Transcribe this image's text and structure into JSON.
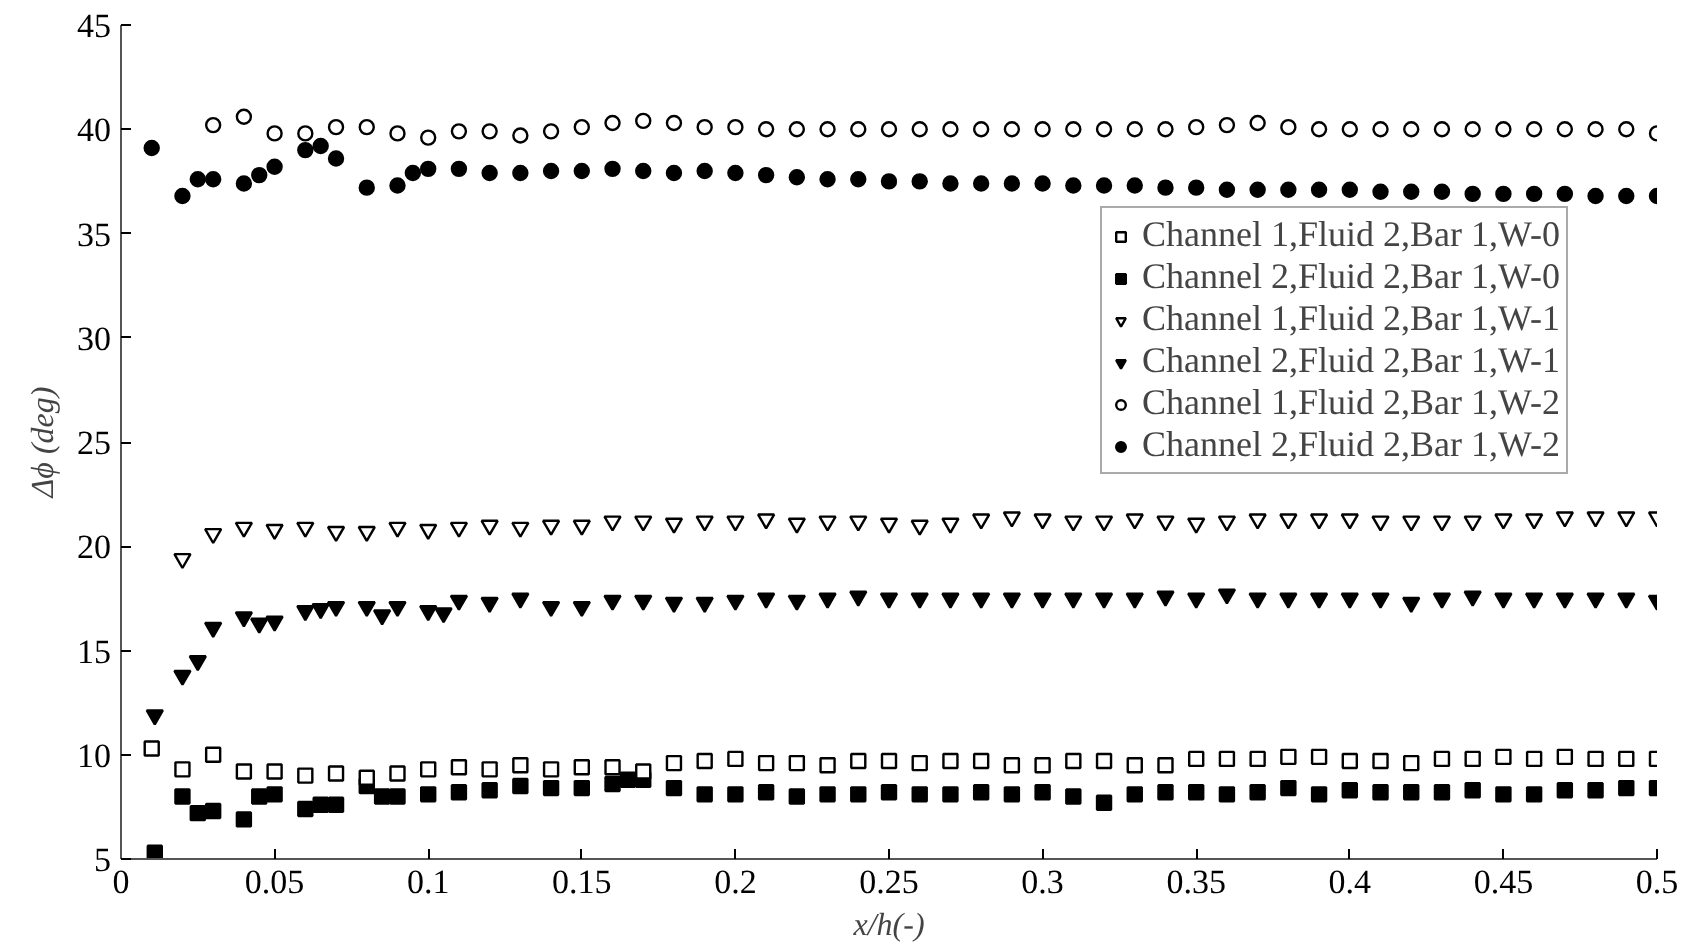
{
  "chart_data": {
    "type": "scatter",
    "xlabel": "x/h(-)",
    "ylabel": "Δϕ (deg)",
    "xlim": [
      0,
      0.5
    ],
    "ylim": [
      5,
      45
    ],
    "xticks": [
      0,
      0.05,
      0.1,
      0.15,
      0.2,
      0.25,
      0.3,
      0.35,
      0.4,
      0.45,
      0.5
    ],
    "yticks": [
      5,
      10,
      15,
      20,
      25,
      30,
      35,
      40,
      45
    ],
    "grid": false,
    "legend": "right",
    "series": [
      {
        "name": "Channel 1,Fluid 2,Bar 1,W-0",
        "color": "#000000",
        "marker": "square",
        "x": [
          0.01,
          0.02,
          0.03,
          0.04,
          0.05,
          0.06,
          0.07,
          0.08,
          0.09,
          0.1,
          0.11,
          0.12,
          0.13,
          0.14,
          0.15,
          0.16,
          0.17,
          0.18,
          0.19,
          0.2,
          0.21,
          0.22,
          0.23,
          0.24,
          0.25,
          0.26,
          0.27,
          0.28,
          0.29,
          0.3,
          0.31,
          0.32,
          0.33,
          0.34,
          0.35,
          0.36,
          0.37,
          0.38,
          0.39,
          0.4,
          0.41,
          0.42,
          0.43,
          0.44,
          0.45,
          0.46,
          0.47,
          0.48,
          0.49,
          0.5
        ],
        "values": [
          10.3,
          9.3,
          10.0,
          9.2,
          9.2,
          9.0,
          9.1,
          8.9,
          9.1,
          9.3,
          9.4,
          9.3,
          9.5,
          9.3,
          9.4,
          9.4,
          9.2,
          9.6,
          9.7,
          9.8,
          9.6,
          9.6,
          9.5,
          9.7,
          9.7,
          9.6,
          9.7,
          9.7,
          9.5,
          9.5,
          9.7,
          9.7,
          9.5,
          9.5,
          9.8,
          9.8,
          9.8,
          9.9,
          9.9,
          9.7,
          9.7,
          9.6,
          9.8,
          9.8,
          9.9,
          9.8,
          9.9,
          9.8,
          9.8,
          9.8
        ]
      },
      {
        "name": "Channel 2,Fluid 2,Bar 1,W-0",
        "color": "#000000",
        "marker": "square",
        "x": [
          0.011,
          0.02,
          0.025,
          0.03,
          0.04,
          0.045,
          0.05,
          0.06,
          0.065,
          0.07,
          0.08,
          0.085,
          0.09,
          0.1,
          0.11,
          0.12,
          0.13,
          0.14,
          0.15,
          0.16,
          0.165,
          0.17,
          0.18,
          0.19,
          0.2,
          0.21,
          0.22,
          0.23,
          0.24,
          0.25,
          0.26,
          0.27,
          0.28,
          0.29,
          0.3,
          0.31,
          0.32,
          0.33,
          0.34,
          0.35,
          0.36,
          0.37,
          0.38,
          0.39,
          0.4,
          0.41,
          0.42,
          0.43,
          0.44,
          0.45,
          0.46,
          0.47,
          0.48,
          0.49,
          0.5
        ],
        "values": [
          5.3,
          8.0,
          7.2,
          7.3,
          6.9,
          8.0,
          8.1,
          7.4,
          7.6,
          7.6,
          8.5,
          8.0,
          8.0,
          8.1,
          8.2,
          8.3,
          8.5,
          8.4,
          8.4,
          8.6,
          8.8,
          8.8,
          8.4,
          8.1,
          8.1,
          8.2,
          8.0,
          8.1,
          8.1,
          8.2,
          8.1,
          8.1,
          8.2,
          8.1,
          8.2,
          8.0,
          7.7,
          8.1,
          8.2,
          8.2,
          8.1,
          8.2,
          8.4,
          8.1,
          8.3,
          8.2,
          8.2,
          8.2,
          8.3,
          8.1,
          8.1,
          8.3,
          8.3,
          8.4,
          8.4
        ]
      },
      {
        "name": "Channel 1,Fluid 2,Bar 1,W-1",
        "color": "#000000",
        "marker": "triangle",
        "x": [
          0.02,
          0.03,
          0.04,
          0.05,
          0.06,
          0.07,
          0.08,
          0.09,
          0.1,
          0.11,
          0.12,
          0.13,
          0.14,
          0.15,
          0.16,
          0.17,
          0.18,
          0.19,
          0.2,
          0.21,
          0.22,
          0.23,
          0.24,
          0.25,
          0.26,
          0.27,
          0.28,
          0.29,
          0.3,
          0.31,
          0.32,
          0.33,
          0.34,
          0.35,
          0.36,
          0.37,
          0.38,
          0.39,
          0.4,
          0.41,
          0.42,
          0.43,
          0.44,
          0.45,
          0.46,
          0.47,
          0.48,
          0.49,
          0.5
        ],
        "values": [
          19.4,
          20.6,
          20.9,
          20.8,
          20.9,
          20.7,
          20.7,
          20.9,
          20.8,
          20.9,
          21.0,
          20.9,
          21.0,
          21.0,
          21.2,
          21.2,
          21.1,
          21.2,
          21.2,
          21.3,
          21.1,
          21.2,
          21.2,
          21.1,
          21.0,
          21.1,
          21.3,
          21.4,
          21.3,
          21.2,
          21.2,
          21.3,
          21.2,
          21.1,
          21.2,
          21.3,
          21.3,
          21.3,
          21.3,
          21.2,
          21.2,
          21.2,
          21.2,
          21.3,
          21.3,
          21.4,
          21.4,
          21.4,
          21.4
        ]
      },
      {
        "name": "Channel 2,Fluid 2,Bar 1,W-1",
        "color": "#000000",
        "marker": "triangle",
        "x": [
          0.011,
          0.02,
          0.025,
          0.03,
          0.04,
          0.045,
          0.05,
          0.06,
          0.065,
          0.07,
          0.08,
          0.085,
          0.09,
          0.1,
          0.105,
          0.11,
          0.12,
          0.13,
          0.14,
          0.15,
          0.16,
          0.17,
          0.18,
          0.19,
          0.2,
          0.21,
          0.22,
          0.23,
          0.24,
          0.25,
          0.26,
          0.27,
          0.28,
          0.29,
          0.3,
          0.31,
          0.32,
          0.33,
          0.34,
          0.35,
          0.36,
          0.37,
          0.38,
          0.39,
          0.4,
          0.41,
          0.42,
          0.43,
          0.44,
          0.45,
          0.46,
          0.47,
          0.48,
          0.49,
          0.5
        ],
        "values": [
          11.9,
          13.8,
          14.5,
          16.1,
          16.6,
          16.3,
          16.4,
          16.9,
          17.0,
          17.1,
          17.1,
          16.7,
          17.1,
          16.9,
          16.8,
          17.4,
          17.3,
          17.5,
          17.1,
          17.1,
          17.4,
          17.4,
          17.3,
          17.3,
          17.4,
          17.5,
          17.4,
          17.5,
          17.6,
          17.5,
          17.5,
          17.5,
          17.5,
          17.5,
          17.5,
          17.5,
          17.5,
          17.5,
          17.6,
          17.5,
          17.7,
          17.5,
          17.5,
          17.5,
          17.5,
          17.5,
          17.3,
          17.5,
          17.6,
          17.5,
          17.5,
          17.5,
          17.5,
          17.5,
          17.4
        ]
      },
      {
        "name": "Channel 1,Fluid 2,Bar 1,W-2",
        "color": "#000000",
        "marker": "circle",
        "x": [
          0.03,
          0.04,
          0.05,
          0.06,
          0.07,
          0.08,
          0.09,
          0.1,
          0.11,
          0.12,
          0.13,
          0.14,
          0.15,
          0.16,
          0.17,
          0.18,
          0.19,
          0.2,
          0.21,
          0.22,
          0.23,
          0.24,
          0.25,
          0.26,
          0.27,
          0.28,
          0.29,
          0.3,
          0.31,
          0.32,
          0.33,
          0.34,
          0.35,
          0.36,
          0.37,
          0.38,
          0.39,
          0.4,
          0.41,
          0.42,
          0.43,
          0.44,
          0.45,
          0.46,
          0.47,
          0.48,
          0.49,
          0.5
        ],
        "values": [
          40.2,
          40.6,
          39.8,
          39.8,
          40.1,
          40.1,
          39.8,
          39.6,
          39.9,
          39.9,
          39.7,
          39.9,
          40.1,
          40.3,
          40.4,
          40.3,
          40.1,
          40.1,
          40.0,
          40.0,
          40.0,
          40.0,
          40.0,
          40.0,
          40.0,
          40.0,
          40.0,
          40.0,
          40.0,
          40.0,
          40.0,
          40.0,
          40.1,
          40.2,
          40.3,
          40.1,
          40.0,
          40.0,
          40.0,
          40.0,
          40.0,
          40.0,
          40.0,
          40.0,
          40.0,
          40.0,
          40.0,
          39.8
        ]
      },
      {
        "name": "Channel 2,Fluid 2,Bar 1,W-2",
        "color": "#000000",
        "marker": "circle",
        "x": [
          0.01,
          0.02,
          0.025,
          0.03,
          0.04,
          0.045,
          0.05,
          0.06,
          0.065,
          0.07,
          0.08,
          0.09,
          0.095,
          0.1,
          0.11,
          0.12,
          0.13,
          0.14,
          0.15,
          0.16,
          0.17,
          0.18,
          0.19,
          0.2,
          0.21,
          0.22,
          0.23,
          0.24,
          0.25,
          0.26,
          0.27,
          0.28,
          0.29,
          0.3,
          0.31,
          0.32,
          0.33,
          0.34,
          0.35,
          0.36,
          0.37,
          0.38,
          0.39,
          0.4,
          0.41,
          0.42,
          0.43,
          0.44,
          0.45,
          0.46,
          0.47,
          0.48,
          0.49,
          0.5
        ],
        "values": [
          39.1,
          36.8,
          37.6,
          37.6,
          37.4,
          37.8,
          38.2,
          39.0,
          39.2,
          38.6,
          37.2,
          37.3,
          37.9,
          38.1,
          38.1,
          37.9,
          37.9,
          38.0,
          38.0,
          38.1,
          38.0,
          37.9,
          38.0,
          37.9,
          37.8,
          37.7,
          37.6,
          37.6,
          37.5,
          37.5,
          37.4,
          37.4,
          37.4,
          37.4,
          37.3,
          37.3,
          37.3,
          37.2,
          37.2,
          37.1,
          37.1,
          37.1,
          37.1,
          37.1,
          37.0,
          37.0,
          37.0,
          36.9,
          36.9,
          36.9,
          36.9,
          36.8,
          36.8,
          36.8
        ]
      }
    ]
  }
}
